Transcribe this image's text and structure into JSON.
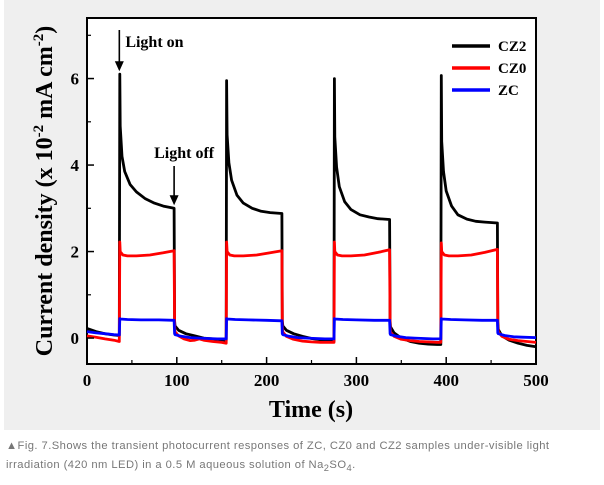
{
  "chart_data": {
    "type": "line",
    "xlabel": "Time (s)",
    "ylabel_main": "Current density (x 10",
    "ylabel_exp": "-2",
    "ylabel_unit": " mA cm",
    "ylabel_unit_exp": "-2",
    "ylabel_close": ")",
    "xlim": [
      0,
      500
    ],
    "ylim": [
      -0.6,
      7.4
    ],
    "x_ticks": [
      0,
      100,
      200,
      300,
      400,
      500
    ],
    "y_ticks": [
      0,
      2,
      4,
      6
    ],
    "grid": false,
    "legend_position": "top-right",
    "series": [
      {
        "name": "CZ2",
        "color": "#000000",
        "x": [
          0,
          10,
          20,
          30,
          36,
          36.5,
          37,
          39,
          42,
          48,
          55,
          65,
          75,
          85,
          97,
          97.5,
          98,
          102,
          110,
          120,
          130,
          140,
          150,
          155,
          155.5,
          156,
          158,
          161,
          167,
          174,
          184,
          194,
          204,
          217,
          217.5,
          218,
          222,
          230,
          240,
          250,
          260,
          270,
          275,
          275.5,
          276,
          278,
          281,
          287,
          294,
          304,
          314,
          324,
          337,
          337.5,
          338,
          342,
          350,
          360,
          370,
          380,
          390,
          394,
          394.5,
          395,
          397,
          400,
          406,
          413,
          423,
          433,
          443,
          457,
          457.5,
          458,
          462,
          470,
          480,
          490,
          500
        ],
        "values": [
          0.22,
          0.15,
          0.1,
          0.07,
          0.06,
          6.1,
          4.9,
          4.2,
          3.85,
          3.55,
          3.38,
          3.22,
          3.12,
          3.05,
          3.0,
          0.4,
          0.28,
          0.18,
          0.1,
          0.05,
          0.0,
          -0.02,
          -0.04,
          -0.05,
          5.95,
          4.7,
          4.05,
          3.65,
          3.3,
          3.12,
          3.0,
          2.93,
          2.9,
          2.88,
          0.4,
          0.28,
          0.18,
          0.1,
          0.04,
          -0.01,
          -0.04,
          -0.06,
          -0.07,
          6.0,
          4.65,
          3.95,
          3.5,
          3.15,
          2.97,
          2.85,
          2.8,
          2.76,
          2.74,
          0.4,
          0.26,
          0.12,
          0.0,
          -0.08,
          -0.12,
          -0.14,
          -0.15,
          -0.15,
          6.07,
          4.55,
          3.85,
          3.4,
          3.05,
          2.85,
          2.75,
          2.7,
          2.68,
          2.66,
          0.38,
          0.2,
          0.05,
          -0.05,
          -0.12,
          -0.17,
          -0.2
        ]
      },
      {
        "name": "CZ0",
        "color": "#ff0000",
        "x": [
          0,
          10,
          20,
          30,
          36,
          36.5,
          37,
          40,
          45,
          55,
          70,
          85,
          97,
          97.5,
          98,
          102,
          108,
          115,
          120,
          125,
          130,
          140,
          150,
          155,
          155.5,
          156,
          159,
          164,
          174,
          189,
          204,
          217,
          217.5,
          218,
          222,
          230,
          240,
          250,
          260,
          270,
          275,
          275.5,
          276,
          279,
          284,
          294,
          309,
          324,
          337,
          337.5,
          338,
          342,
          350,
          360,
          370,
          380,
          390,
          394,
          394.5,
          395,
          398,
          403,
          413,
          428,
          443,
          457,
          457.5,
          458,
          462,
          470,
          480,
          490,
          500
        ],
        "values": [
          0.05,
          0.02,
          -0.02,
          -0.05,
          -0.08,
          2.22,
          2.0,
          1.92,
          1.9,
          1.9,
          1.92,
          1.97,
          2.02,
          0.3,
          0.15,
          0.05,
          -0.02,
          -0.06,
          -0.05,
          -0.02,
          -0.05,
          -0.08,
          -0.1,
          -0.12,
          2.22,
          2.0,
          1.92,
          1.9,
          1.9,
          1.92,
          1.97,
          2.02,
          0.28,
          0.14,
          0.04,
          -0.03,
          -0.07,
          -0.09,
          -0.1,
          -0.1,
          -0.1,
          2.22,
          2.0,
          1.92,
          1.9,
          1.9,
          1.92,
          1.98,
          2.04,
          0.28,
          0.14,
          0.04,
          -0.03,
          -0.06,
          -0.08,
          -0.09,
          -0.1,
          -0.1,
          2.2,
          2.0,
          1.92,
          1.9,
          1.9,
          1.92,
          1.98,
          2.05,
          0.28,
          0.14,
          0.04,
          -0.03,
          -0.06,
          -0.08,
          -0.1
        ]
      },
      {
        "name": "ZC",
        "color": "#0000ff",
        "x": [
          0,
          10,
          20,
          30,
          36,
          36.5,
          37,
          45,
          60,
          80,
          97,
          97.5,
          98,
          105,
          115,
          125,
          135,
          145,
          155,
          155.5,
          156,
          165,
          180,
          200,
          217,
          217.5,
          218,
          225,
          235,
          245,
          255,
          265,
          275,
          275.5,
          276,
          285,
          300,
          320,
          337,
          337.5,
          338,
          345,
          355,
          365,
          375,
          385,
          394,
          394.5,
          395,
          405,
          420,
          440,
          457,
          457.5,
          458,
          465,
          475,
          485,
          500
        ],
        "values": [
          0.15,
          0.12,
          0.1,
          0.08,
          0.07,
          0.45,
          0.44,
          0.43,
          0.42,
          0.42,
          0.41,
          0.1,
          0.08,
          0.04,
          0.01,
          0.0,
          -0.01,
          -0.02,
          -0.02,
          0.45,
          0.44,
          0.43,
          0.42,
          0.41,
          0.4,
          0.1,
          0.08,
          0.04,
          0.01,
          0.0,
          -0.01,
          -0.02,
          -0.02,
          0.45,
          0.44,
          0.43,
          0.42,
          0.41,
          0.41,
          0.1,
          0.08,
          0.04,
          0.01,
          0.0,
          -0.01,
          -0.02,
          -0.02,
          0.45,
          0.44,
          0.43,
          0.42,
          0.41,
          0.41,
          0.12,
          0.1,
          0.06,
          0.03,
          0.02,
          0.01
        ]
      }
    ],
    "annotations": [
      {
        "text": "Light on",
        "x": 36,
        "y": 6.1
      },
      {
        "text": "Light off",
        "x": 97,
        "y": 3.0
      }
    ]
  },
  "caption": {
    "marker": "▲",
    "text_before_sub": "Fig. 7.Shows the transient photocurrent responses of ZC, CZ0 and CZ2 samples under-visible light irradiation (420 nm LED) in a 0.5 M aqueous solution of Na",
    "sub1": "2",
    "mid": "SO",
    "sub2": "4",
    "end": "."
  }
}
